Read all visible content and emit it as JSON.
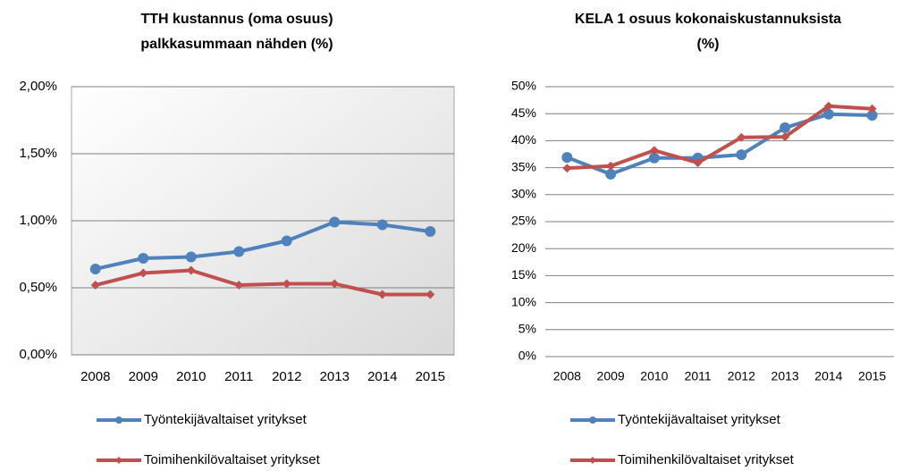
{
  "chart_data": [
    {
      "type": "line",
      "title": [
        "TTH kustannus (oma osuus)",
        "palkkasummaan nähden (%)"
      ],
      "categories": [
        "2008",
        "2009",
        "2010",
        "2011",
        "2012",
        "2013",
        "2014",
        "2015"
      ],
      "series": [
        {
          "name": "Työntekijävaltaiset yritykset",
          "color": "#4f81bd",
          "marker": "circle",
          "values": [
            0.64,
            0.72,
            0.73,
            0.77,
            0.85,
            0.99,
            0.97,
            0.92
          ]
        },
        {
          "name": "Toimihenkilövaltaiset yritykset",
          "color": "#c0504d",
          "marker": "diamond",
          "values": [
            0.52,
            0.61,
            0.63,
            0.52,
            0.53,
            0.53,
            0.45,
            0.45
          ]
        }
      ],
      "ylim": [
        0,
        2
      ],
      "yticks": [
        {
          "value": 0,
          "label": "0,00%"
        },
        {
          "value": 0.5,
          "label": "0,50%"
        },
        {
          "value": 1,
          "label": "1,00%"
        },
        {
          "value": 1.5,
          "label": "1,50%"
        },
        {
          "value": 2,
          "label": "2,00%"
        }
      ],
      "grid": true,
      "legend": "bottom"
    },
    {
      "type": "line",
      "title": [
        "KELA 1 osuus kokonaiskustannuksista",
        "(%)"
      ],
      "categories": [
        "2008",
        "2009",
        "2010",
        "2011",
        "2012",
        "2013",
        "2014",
        "2015"
      ],
      "series": [
        {
          "name": "Työntekijävaltaiset yritykset",
          "color": "#4f81bd",
          "marker": "circle",
          "values": [
            36.9,
            33.8,
            36.8,
            36.8,
            37.4,
            42.4,
            44.9,
            44.7
          ]
        },
        {
          "name": "Toimihenkilövaltaiset yritykset",
          "color": "#c0504d",
          "marker": "diamond",
          "values": [
            34.9,
            35.3,
            38.2,
            35.9,
            40.6,
            40.7,
            46.4,
            45.9
          ]
        }
      ],
      "ylim": [
        0,
        50
      ],
      "yticks": [
        {
          "value": 0,
          "label": "0%"
        },
        {
          "value": 5,
          "label": "5%"
        },
        {
          "value": 10,
          "label": "10%"
        },
        {
          "value": 15,
          "label": "15%"
        },
        {
          "value": 20,
          "label": "20%"
        },
        {
          "value": 25,
          "label": "25%"
        },
        {
          "value": 30,
          "label": "30%"
        },
        {
          "value": 35,
          "label": "35%"
        },
        {
          "value": 40,
          "label": "40%"
        },
        {
          "value": 45,
          "label": "45%"
        },
        {
          "value": 50,
          "label": "50%"
        }
      ],
      "grid": true,
      "legend": "bottom"
    }
  ]
}
